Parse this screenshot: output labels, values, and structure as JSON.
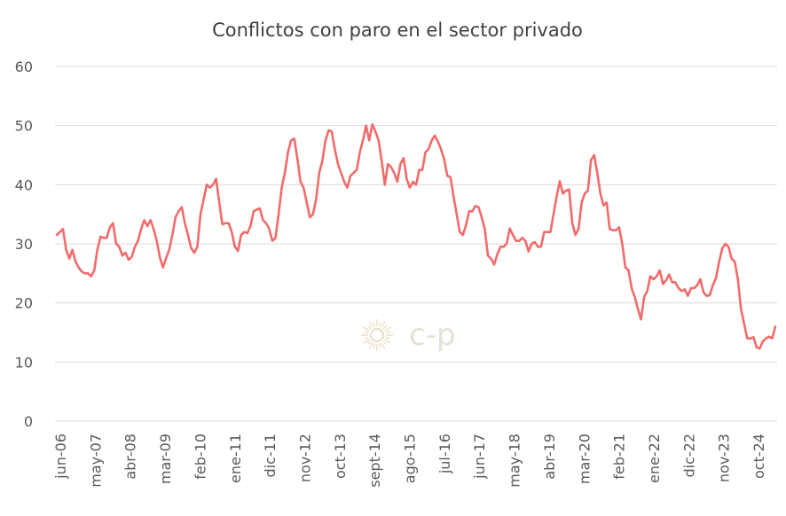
{
  "chart_data": {
    "type": "line",
    "title": "Conflictos con paro en el sector privado",
    "watermark": "c-p",
    "ylim": [
      0,
      60
    ],
    "y_ticks": [
      "0",
      "10",
      "20",
      "30",
      "40",
      "50",
      "60"
    ],
    "x_ticks": [
      "jun-06",
      "may-07",
      "abr-08",
      "mar-09",
      "feb-10",
      "ene-11",
      "dic-11",
      "nov-12",
      "oct-13",
      "sept-14",
      "ago-15",
      "jul-16",
      "jun-17",
      "may-18",
      "abr-19",
      "mar-20",
      "feb-21",
      "ene-22",
      "dic-22",
      "nov-23",
      "oct-24"
    ],
    "grid": true,
    "legend": "none",
    "series_color": "#f26b6b",
    "series": [
      {
        "values": [
          31.5,
          32,
          32.5,
          29,
          27.5,
          29,
          27,
          26,
          25.3,
          25,
          25,
          24.5,
          25.5,
          29,
          31.2,
          31,
          31,
          32.8,
          33.5,
          30,
          29.5,
          28,
          28.5,
          27.3,
          27.8,
          29.5,
          30.5,
          32.5,
          34,
          33,
          34,
          32.5,
          30.5,
          27.7,
          26,
          27.6,
          29,
          31.5,
          34.5,
          35.5,
          36.2,
          33.5,
          31.5,
          29.3,
          28.5,
          29.5,
          35,
          37.5,
          40,
          39.5,
          40,
          41,
          37,
          33.3,
          33.5,
          33.5,
          32,
          29.5,
          28.8,
          31.5,
          32,
          31.8,
          33,
          35.5,
          35.8,
          36,
          34,
          33.5,
          32.5,
          30.5,
          31,
          35,
          39.5,
          42,
          45.5,
          47.5,
          47.8,
          44.5,
          40.5,
          39.5,
          37,
          34.5,
          35,
          37.5,
          42,
          44,
          47.5,
          49.2,
          49,
          46,
          43.5,
          42,
          40.5,
          39.5,
          41.5,
          42,
          42.5,
          45.5,
          47.5,
          50,
          47.5,
          50.2,
          49,
          47.5,
          44,
          40,
          43.5,
          43,
          42,
          40.5,
          43.5,
          44.5,
          41,
          39.5,
          40.5,
          40,
          42.5,
          42.5,
          45.5,
          46,
          47.5,
          48.3,
          47.3,
          46,
          44.3,
          41.5,
          41.3,
          38,
          35,
          32,
          31.5,
          33.2,
          35.5,
          35.5,
          36.4,
          36.2,
          34.5,
          32.5,
          28,
          27.5,
          26.5,
          28.2,
          29.5,
          29.5,
          30,
          32.6,
          31.5,
          30.5,
          30.5,
          31,
          30.5,
          28.7,
          30,
          30.3,
          29.5,
          29.5,
          32,
          32,
          32,
          35,
          38,
          40.6,
          38.5,
          39,
          39.2,
          33.5,
          31.5,
          32.5,
          37,
          38.5,
          39,
          44.2,
          45,
          42,
          38.5,
          36.5,
          37,
          32.5,
          32.3,
          32.3,
          32.8,
          30,
          26,
          25.5,
          22.5,
          21,
          19,
          17.2,
          21,
          22,
          24.5,
          24,
          24.5,
          25.5,
          23.2,
          23.8,
          24.8,
          23.5,
          23.5,
          22.5,
          22,
          22.3,
          21.2,
          22.5,
          22.5,
          23,
          24,
          21.8,
          21.2,
          21.3,
          23,
          24.2,
          27,
          29.2,
          30,
          29.5,
          27.5,
          27,
          24,
          19,
          16.5,
          14,
          14,
          14.2,
          12.5,
          12.3,
          13.5,
          14,
          14.3,
          14,
          16
        ]
      }
    ]
  }
}
